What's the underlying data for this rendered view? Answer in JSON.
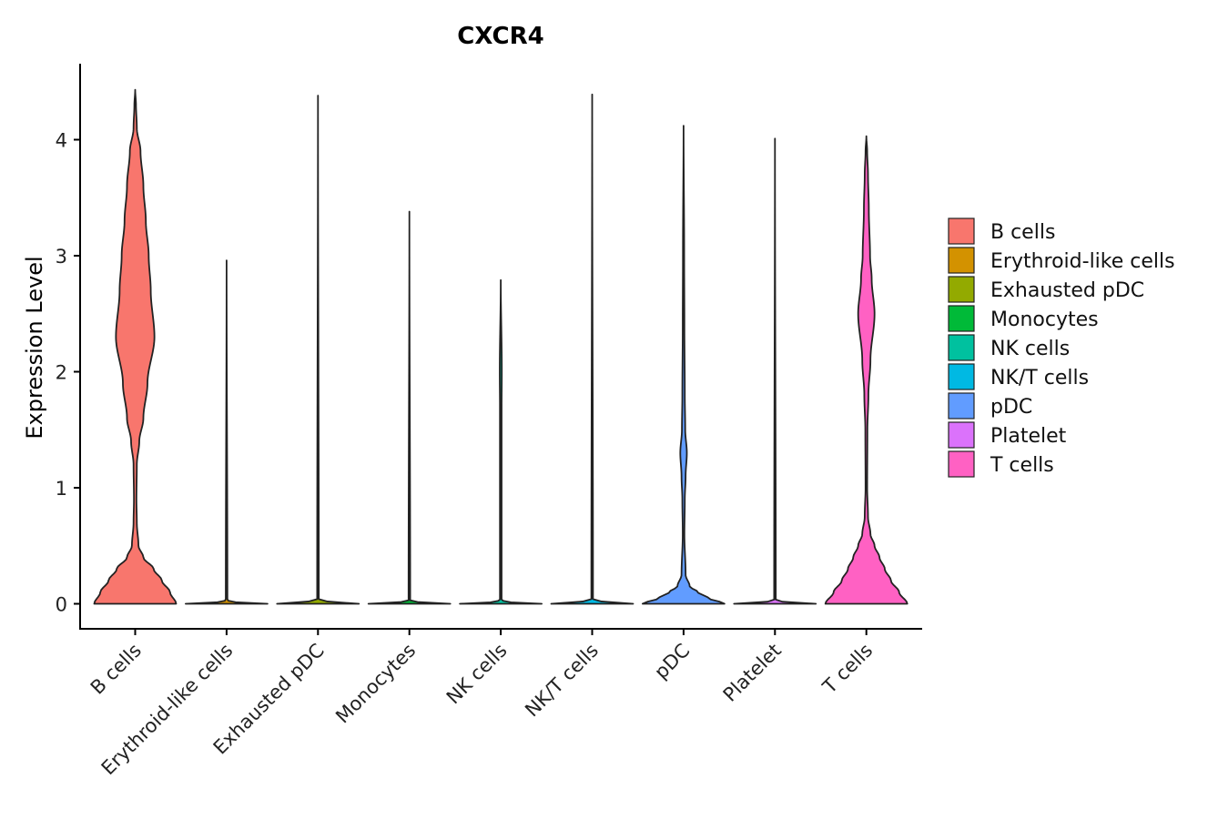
{
  "chart_data": {
    "type": "violin",
    "title": "CXCR4",
    "xlabel": "",
    "ylabel": "Expression Level",
    "ylim": [
      -0.22,
      4.65
    ],
    "yticks": [
      0,
      1,
      2,
      3,
      4
    ],
    "ytick_labels": [
      "0",
      "1",
      "2",
      "3",
      "4"
    ],
    "categories": [
      "B cells",
      "Erythroid-like cells",
      "Exhausted pDC",
      "Monocytes",
      "NK cells",
      "NK/T cells",
      "pDC",
      "Platelet",
      "T cells"
    ],
    "legend_position": "right",
    "series": [
      {
        "name": "B cells",
        "color": "#F8766D",
        "max": 4.43,
        "density": [
          [
            0,
            1.0
          ],
          [
            0.1,
            0.85
          ],
          [
            0.2,
            0.65
          ],
          [
            0.3,
            0.45
          ],
          [
            0.4,
            0.2
          ],
          [
            0.5,
            0.08
          ],
          [
            0.7,
            0.04
          ],
          [
            0.9,
            0.03
          ],
          [
            1.2,
            0.04
          ],
          [
            1.4,
            0.1
          ],
          [
            1.6,
            0.2
          ],
          [
            1.9,
            0.3
          ],
          [
            2.3,
            0.47
          ],
          [
            2.7,
            0.38
          ],
          [
            3.0,
            0.33
          ],
          [
            3.3,
            0.26
          ],
          [
            3.6,
            0.2
          ],
          [
            3.9,
            0.13
          ],
          [
            4.1,
            0.04
          ],
          [
            4.3,
            0.02
          ],
          [
            4.43,
            0.0
          ]
        ]
      },
      {
        "name": "Erythroid-like cells",
        "color": "#D39200",
        "max": 2.96,
        "density": [
          [
            0,
            1.0
          ],
          [
            0.015,
            0.2
          ],
          [
            0.03,
            0.02
          ],
          [
            2.96,
            0.0
          ]
        ]
      },
      {
        "name": "Exhausted pDC",
        "color": "#93AA00",
        "max": 4.38,
        "density": [
          [
            0,
            1.0
          ],
          [
            0.015,
            0.3
          ],
          [
            0.03,
            0.02
          ],
          [
            4.38,
            0.0
          ]
        ]
      },
      {
        "name": "Monocytes",
        "color": "#00BA38",
        "max": 3.38,
        "density": [
          [
            0,
            1.0
          ],
          [
            0.015,
            0.2
          ],
          [
            0.03,
            0.02
          ],
          [
            3.38,
            0.0
          ]
        ]
      },
      {
        "name": "NK cells",
        "color": "#00C19F",
        "max": 2.79,
        "density": [
          [
            0,
            1.0
          ],
          [
            0.015,
            0.2
          ],
          [
            0.03,
            0.02
          ],
          [
            1.7,
            0.02
          ],
          [
            2.0,
            0.025
          ],
          [
            2.79,
            0.0
          ]
        ]
      },
      {
        "name": "NK/T cells",
        "color": "#00B9E3",
        "max": 4.39,
        "density": [
          [
            0,
            1.0
          ],
          [
            0.015,
            0.3
          ],
          [
            0.03,
            0.02
          ],
          [
            4.39,
            0.0
          ]
        ]
      },
      {
        "name": "pDC",
        "color": "#619CFF",
        "max": 4.12,
        "density": [
          [
            0,
            1.0
          ],
          [
            0.05,
            0.6
          ],
          [
            0.1,
            0.35
          ],
          [
            0.15,
            0.15
          ],
          [
            0.25,
            0.05
          ],
          [
            0.6,
            0.02
          ],
          [
            0.9,
            0.03
          ],
          [
            1.1,
            0.05
          ],
          [
            1.3,
            0.08
          ],
          [
            1.5,
            0.04
          ],
          [
            1.8,
            0.03
          ],
          [
            2.4,
            0.02
          ],
          [
            3.0,
            0.015
          ],
          [
            4.12,
            0.0
          ]
        ]
      },
      {
        "name": "Platelet",
        "color": "#DB72FB",
        "max": 4.01,
        "density": [
          [
            0,
            1.0
          ],
          [
            0.015,
            0.2
          ],
          [
            0.03,
            0.02
          ],
          [
            4.01,
            0.0
          ]
        ]
      },
      {
        "name": "T cells",
        "color": "#FF61C3",
        "max": 4.03,
        "density": [
          [
            0,
            1.0
          ],
          [
            0.1,
            0.8
          ],
          [
            0.2,
            0.6
          ],
          [
            0.3,
            0.45
          ],
          [
            0.4,
            0.32
          ],
          [
            0.5,
            0.2
          ],
          [
            0.6,
            0.1
          ],
          [
            0.75,
            0.04
          ],
          [
            1.0,
            0.02
          ],
          [
            1.5,
            0.025
          ],
          [
            1.8,
            0.05
          ],
          [
            2.1,
            0.1
          ],
          [
            2.5,
            0.2
          ],
          [
            2.8,
            0.13
          ],
          [
            3.0,
            0.09
          ],
          [
            3.4,
            0.06
          ],
          [
            3.7,
            0.04
          ],
          [
            3.9,
            0.02
          ],
          [
            4.03,
            0.0
          ]
        ]
      }
    ]
  }
}
